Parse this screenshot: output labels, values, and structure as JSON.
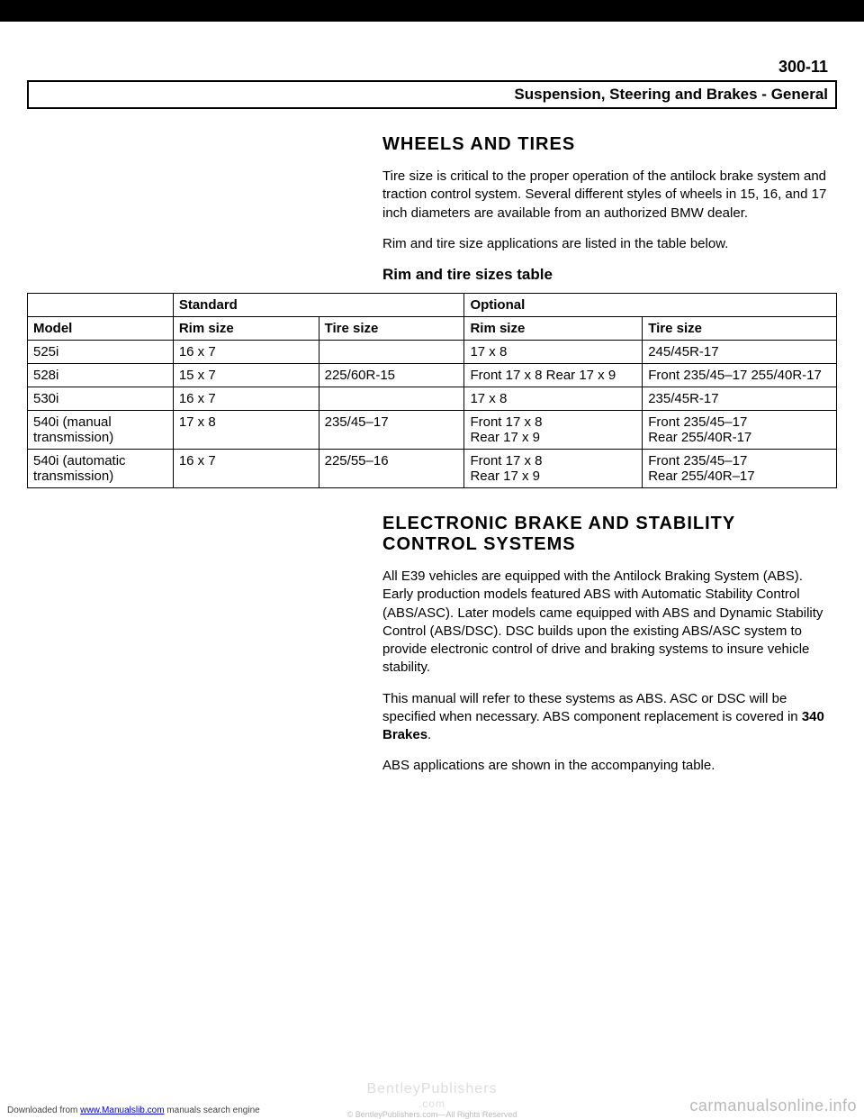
{
  "page_number": "300-11",
  "section_header": "Suspension, Steering and Brakes - General",
  "wheels_tires": {
    "heading": "WHEELS AND TIRES",
    "para1": "Tire size is critical to the proper operation of the antilock brake system and traction control system. Several different styles of wheels in 15, 16, and 17 inch diameters are available from an authorized BMW dealer.",
    "para2": "Rim and tire size applications are listed in the table below.",
    "table_heading": "Rim and tire sizes table"
  },
  "table": {
    "col_headers": {
      "blank": "",
      "standard": "Standard",
      "optional": "Optional",
      "model": "Model",
      "rim_size": "Rim size",
      "tire_size": "Tire size"
    },
    "rows": [
      {
        "model": "525i",
        "std_rim": "16 x 7",
        "std_tire": "",
        "opt_rim": "17 x 8",
        "opt_tire": "245/45R-17"
      },
      {
        "model": "528i",
        "std_rim": "15 x 7",
        "std_tire": "225/60R-15",
        "opt_rim": "Front 17 x 8 Rear 17 x 9",
        "opt_tire": "Front 235/45–17 255/40R-17"
      },
      {
        "model": "530i",
        "std_rim": "16 x 7",
        "std_tire": "",
        "opt_rim": "17 x 8",
        "opt_tire": "235/45R-17"
      },
      {
        "model": "540i (manual transmission)",
        "std_rim": "17 x 8",
        "std_tire": "235/45–17",
        "opt_rim": "Front 17 x 8\nRear 17 x 9",
        "opt_tire": "Front 235/45–17\nRear 255/40R-17"
      },
      {
        "model": "540i (automatic transmission)",
        "std_rim": "16 x 7",
        "std_tire": "225/55–16",
        "opt_rim": "Front 17 x 8\nRear 17 x 9",
        "opt_tire": "Front 235/45–17\nRear 255/40R–17"
      }
    ]
  },
  "brake_section": {
    "heading": "ELECTRONIC BRAKE AND STABILITY CONTROL SYSTEMS",
    "para1": "All E39 vehicles are equipped with the Antilock Braking System (ABS). Early production models featured ABS with Automatic Stability Control (ABS/ASC). Later models came equipped with ABS and Dynamic Stability Control (ABS/DSC). DSC builds upon the existing ABS/ASC system to provide electronic control of drive and braking systems to insure vehicle stability.",
    "para2_pre": "This manual will refer to these systems as ABS. ASC or DSC will be specified when necessary. ABS component replacement is covered in ",
    "para2_bold": "340 Brakes",
    "para2_post": ".",
    "para3": "ABS applications are shown in the accompanying table."
  },
  "footer": {
    "left_pre": "Downloaded from ",
    "left_link": "www.Manualslib.com",
    "left_post": " manuals search engine",
    "watermark": "BentleyPublishers",
    "watermark_domain": ".com",
    "copyright": "© BentleyPublishers.com—All Rights Reserved",
    "right": "carmanualsonline.info"
  }
}
